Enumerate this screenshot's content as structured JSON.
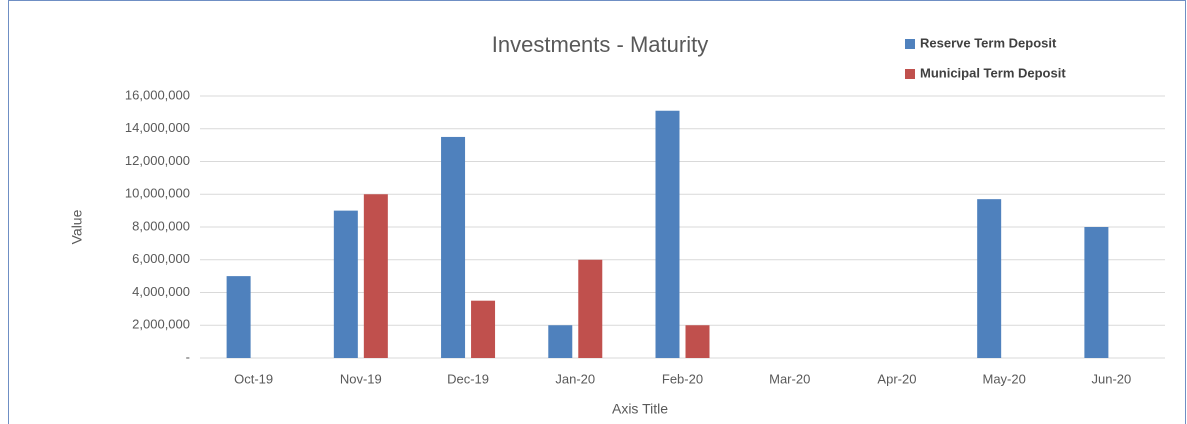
{
  "chart_data": {
    "type": "bar",
    "title": "Investments - Maturity",
    "x_label": "Axis Title",
    "y_label": "Value",
    "categories": [
      "Oct-19",
      "Nov-19",
      "Dec-19",
      "Jan-20",
      "Feb-20",
      "Mar-20",
      "Apr-20",
      "May-20",
      "Jun-20"
    ],
    "series": [
      {
        "name": "Reserve Term Deposit",
        "color": "#4f81bd",
        "values": [
          5000000,
          9000000,
          13500000,
          2000000,
          15100000,
          0,
          0,
          9700000,
          8000000
        ]
      },
      {
        "name": "Municipal Term Deposit",
        "color": "#c0504d",
        "values": [
          0,
          10000000,
          3500000,
          6000000,
          2000000,
          0,
          0,
          0,
          0
        ]
      }
    ],
    "ylim": [
      0,
      16000000
    ],
    "yticks": [
      {
        "value": 0,
        "label": "-"
      },
      {
        "value": 2000000,
        "label": "2,000,000"
      },
      {
        "value": 4000000,
        "label": "4,000,000"
      },
      {
        "value": 6000000,
        "label": "6,000,000"
      },
      {
        "value": 8000000,
        "label": "8,000,000"
      },
      {
        "value": 10000000,
        "label": "10,000,000"
      },
      {
        "value": 12000000,
        "label": "12,000,000"
      },
      {
        "value": 14000000,
        "label": "14,000,000"
      },
      {
        "value": 16000000,
        "label": "16,000,000"
      }
    ],
    "grid": true,
    "legend": "top-right"
  }
}
